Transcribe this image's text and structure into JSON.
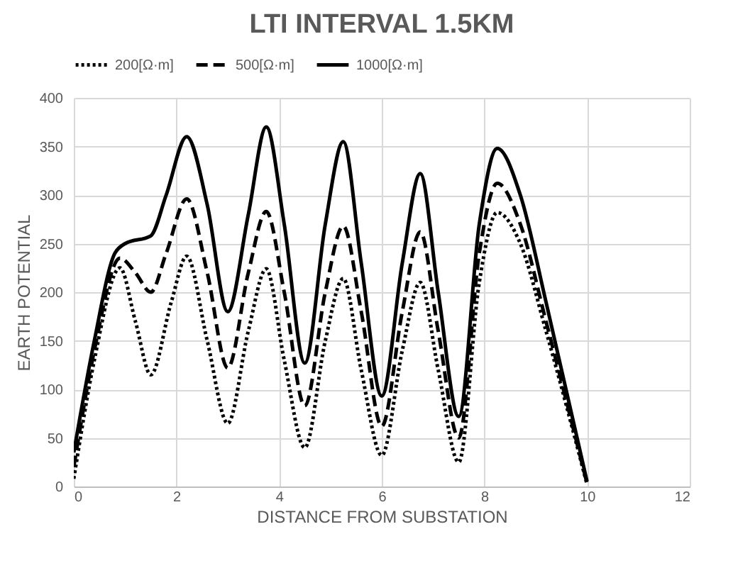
{
  "chart_data": {
    "type": "line",
    "title": "LTI INTERVAL 1.5KM",
    "xlabel": "DISTANCE FROM SUBSTATION",
    "ylabel": "EARTH POTENTIAL",
    "xlim": [
      0,
      12
    ],
    "xticks": [
      0,
      2,
      4,
      6,
      8,
      10,
      12
    ],
    "ylim": [
      0,
      400
    ],
    "yticks": [
      0,
      50,
      100,
      150,
      200,
      250,
      300,
      350,
      400
    ],
    "grid": true,
    "legend": "top",
    "marker": "none",
    "series": [
      {
        "name": "200[Ω·m]",
        "color": "#000000",
        "line_style": "dotted",
        "x": [
          0,
          0.4,
          0.9,
          1.2,
          1.5,
          1.9,
          2.2,
          2.6,
          3.0,
          3.4,
          3.75,
          4.1,
          4.5,
          4.9,
          5.25,
          5.6,
          6.0,
          6.4,
          6.75,
          7.1,
          7.5,
          7.9,
          8.25,
          8.7,
          9.2,
          10
        ],
        "values": [
          8,
          130,
          225,
          170,
          115,
          190,
          237,
          150,
          65,
          160,
          224,
          130,
          40,
          150,
          214,
          120,
          32,
          140,
          210,
          120,
          25,
          210,
          282,
          250,
          160,
          2
        ]
      },
      {
        "name": "500[Ω·m]",
        "color": "#000000",
        "line_style": "dashed",
        "x": [
          0,
          0.4,
          0.9,
          1.2,
          1.5,
          1.8,
          2.2,
          2.6,
          3.0,
          3.4,
          3.75,
          4.1,
          4.5,
          4.9,
          5.25,
          5.6,
          6.0,
          6.4,
          6.75,
          7.1,
          7.5,
          7.9,
          8.25,
          8.7,
          9.2,
          10
        ],
        "values": [
          20,
          140,
          235,
          220,
          200,
          240,
          296,
          220,
          122,
          220,
          283,
          200,
          83,
          200,
          268,
          180,
          62,
          180,
          262,
          160,
          50,
          240,
          312,
          270,
          170,
          3
        ]
      },
      {
        "name": "1000[Ω·m]",
        "color": "#000000",
        "line_style": "solid",
        "x": [
          0,
          0.4,
          0.8,
          1.0,
          1.5,
          1.8,
          2.2,
          2.6,
          3.0,
          3.4,
          3.75,
          4.1,
          4.5,
          4.9,
          5.25,
          5.6,
          6.0,
          6.4,
          6.75,
          7.1,
          7.5,
          7.9,
          8.25,
          8.7,
          9.2,
          10
        ],
        "values": [
          35,
          150,
          240,
          250,
          258,
          300,
          360,
          290,
          180,
          280,
          370,
          270,
          127,
          270,
          355,
          230,
          93,
          230,
          322,
          200,
          72,
          270,
          348,
          300,
          190,
          5
        ]
      }
    ]
  }
}
